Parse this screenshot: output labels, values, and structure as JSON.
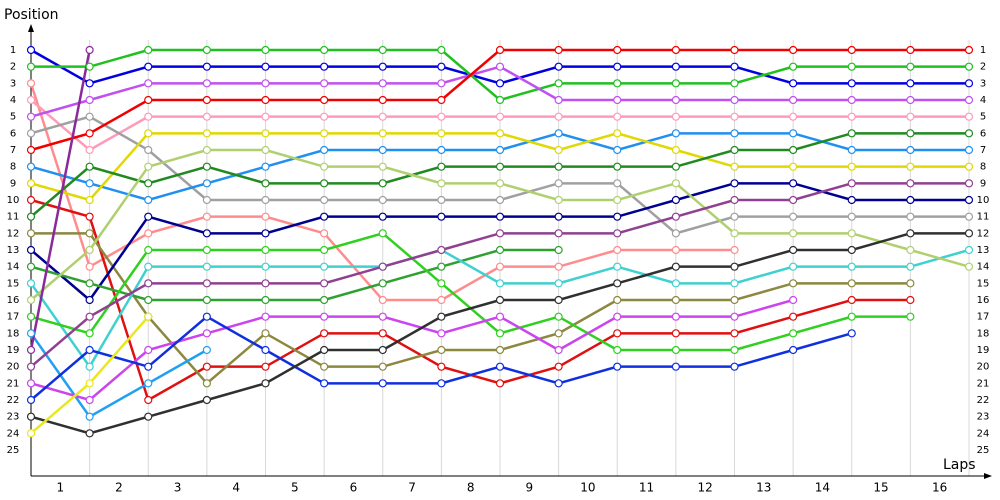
{
  "chart_data": {
    "type": "lap",
    "y_label": "Position",
    "x_label": "Laps",
    "x": [
      0,
      1,
      2,
      3,
      4,
      5,
      6,
      7,
      8,
      9,
      10,
      11,
      12,
      13,
      14,
      15,
      16
    ],
    "xlim": [
      0,
      16
    ],
    "xticks": [
      {
        "value": 0.5,
        "label": "1"
      },
      {
        "value": 1.5,
        "label": "2"
      },
      {
        "value": 2.5,
        "label": "3"
      },
      {
        "value": 3.5,
        "label": "4"
      },
      {
        "value": 4.5,
        "label": "5"
      },
      {
        "value": 5.5,
        "label": "6"
      },
      {
        "value": 6.5,
        "label": "7"
      },
      {
        "value": 7.5,
        "label": "8"
      },
      {
        "value": 8.5,
        "label": "9"
      },
      {
        "value": 9.5,
        "label": "10"
      },
      {
        "value": 10.5,
        "label": "11"
      },
      {
        "value": 11.5,
        "label": "12"
      },
      {
        "value": 12.5,
        "label": "13"
      },
      {
        "value": 13.5,
        "label": "14"
      },
      {
        "value": 14.5,
        "label": "15"
      },
      {
        "value": 15.5,
        "label": "16"
      }
    ],
    "ylim": [
      1,
      25
    ],
    "y_inverted": true,
    "yticks": [
      1,
      2,
      3,
      4,
      5,
      6,
      7,
      8,
      9,
      10,
      11,
      12,
      13,
      14,
      15,
      16,
      17,
      18,
      19,
      20,
      21,
      22,
      23,
      24,
      25
    ],
    "grid": true,
    "series": [
      {
        "color": "#0000e0",
        "values": [
          1,
          3,
          2,
          2,
          2,
          2,
          2,
          2,
          3,
          2,
          2,
          2,
          2,
          3,
          3,
          3,
          3
        ]
      },
      {
        "color": "#20c020",
        "values": [
          2,
          2,
          1,
          1,
          1,
          1,
          1,
          1,
          4,
          3,
          3,
          3,
          3,
          2,
          2,
          2,
          2
        ]
      },
      {
        "color": "#ff8c8c",
        "values": [
          3,
          14,
          12,
          11,
          11,
          12,
          16,
          16,
          14,
          14,
          13,
          13,
          13,
          null,
          null,
          null,
          null
        ]
      },
      {
        "color": "#ff9ab8",
        "values": [
          4,
          7,
          5,
          5,
          5,
          5,
          5,
          5,
          5,
          5,
          5,
          5,
          5,
          5,
          5,
          5,
          5
        ]
      },
      {
        "color": "#c050f0",
        "values": [
          5,
          4,
          3,
          3,
          3,
          3,
          3,
          3,
          2,
          4,
          4,
          4,
          4,
          4,
          4,
          4,
          4
        ]
      },
      {
        "color": "#a0a0a0",
        "values": [
          6,
          5,
          7,
          10,
          10,
          10,
          10,
          10,
          10,
          9,
          9,
          12,
          11,
          11,
          11,
          11,
          11
        ]
      },
      {
        "color": "#f00000",
        "values": [
          7,
          6,
          4,
          4,
          4,
          4,
          4,
          4,
          1,
          1,
          1,
          1,
          1,
          1,
          1,
          1,
          1
        ]
      },
      {
        "color": "#2090f0",
        "values": [
          8,
          9,
          10,
          9,
          8,
          7,
          7,
          7,
          7,
          6,
          7,
          6,
          6,
          6,
          7,
          7,
          7
        ]
      },
      {
        "color": "#e0d800",
        "values": [
          9,
          10,
          6,
          6,
          6,
          6,
          6,
          6,
          6,
          7,
          6,
          7,
          8,
          8,
          8,
          8,
          8
        ]
      },
      {
        "color": "#e01010",
        "values": [
          10,
          11,
          22,
          20,
          20,
          18,
          18,
          20,
          21,
          20,
          18,
          18,
          18,
          17,
          16,
          16,
          null
        ]
      },
      {
        "color": "#208a20",
        "values": [
          11,
          8,
          9,
          8,
          9,
          9,
          9,
          8,
          8,
          8,
          8,
          8,
          7,
          7,
          6,
          6,
          6
        ]
      },
      {
        "color": "#8c8840",
        "values": [
          12,
          12,
          17,
          21,
          18,
          20,
          20,
          19,
          19,
          18,
          16,
          16,
          16,
          15,
          15,
          15,
          null
        ]
      },
      {
        "color": "#000090",
        "values": [
          13,
          16,
          11,
          12,
          12,
          11,
          11,
          11,
          11,
          11,
          11,
          10,
          9,
          9,
          10,
          10,
          10
        ]
      },
      {
        "color": "#30a030",
        "values": [
          14,
          15,
          16,
          16,
          16,
          16,
          15,
          14,
          13,
          13,
          null,
          null,
          null,
          null,
          null,
          null,
          null
        ]
      },
      {
        "color": "#40d0d0",
        "values": [
          15,
          20,
          14,
          14,
          14,
          14,
          14,
          13,
          15,
          15,
          14,
          15,
          15,
          14,
          14,
          14,
          13
        ]
      },
      {
        "color": "#b0d070",
        "values": [
          16,
          13,
          8,
          7,
          7,
          8,
          8,
          9,
          9,
          10,
          10,
          9,
          12,
          12,
          12,
          13,
          14
        ]
      },
      {
        "color": "#30d020",
        "values": [
          17,
          18,
          13,
          13,
          13,
          13,
          12,
          15,
          18,
          17,
          19,
          19,
          19,
          18,
          17,
          17,
          null
        ]
      },
      {
        "color": "#20a0f0",
        "values": [
          18,
          23,
          21,
          19,
          null,
          null,
          null,
          null,
          null,
          null,
          null,
          null,
          null,
          null,
          null,
          null,
          null
        ]
      },
      {
        "color": "#8a2a9a",
        "values": [
          19,
          1,
          null,
          null,
          null,
          null,
          null,
          null,
          null,
          null,
          null,
          null,
          null,
          null,
          null,
          null,
          null
        ]
      },
      {
        "color": "#904090",
        "values": [
          20,
          17,
          15,
          15,
          15,
          15,
          14,
          13,
          12,
          12,
          12,
          11,
          10,
          10,
          9,
          9,
          9
        ]
      },
      {
        "color": "#cc44ee",
        "values": [
          21,
          22,
          19,
          18,
          17,
          17,
          17,
          18,
          17,
          19,
          17,
          17,
          17,
          16,
          null,
          null,
          null
        ]
      },
      {
        "color": "#1030e0",
        "values": [
          22,
          19,
          20,
          17,
          19,
          21,
          21,
          21,
          20,
          21,
          20,
          20,
          20,
          19,
          18,
          null,
          null
        ]
      },
      {
        "color": "#303030",
        "values": [
          23,
          24,
          23,
          22,
          21,
          19,
          19,
          17,
          16,
          16,
          15,
          14,
          14,
          13,
          13,
          12,
          12
        ]
      },
      {
        "color": "#e8e820",
        "values": [
          24,
          21,
          17,
          null,
          null,
          null,
          null,
          null,
          null,
          null,
          null,
          null,
          null,
          null,
          null,
          null,
          null
        ]
      }
    ]
  }
}
